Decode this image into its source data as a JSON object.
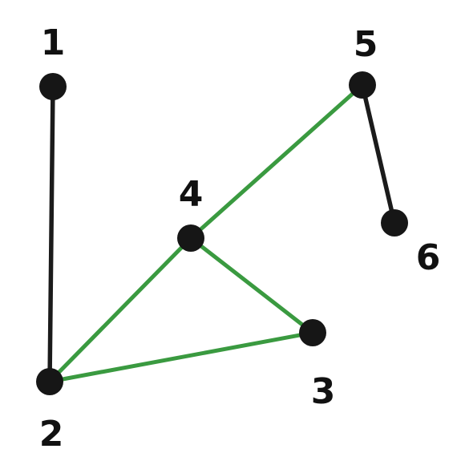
{
  "colors": {
    "node": "#161616",
    "default_edge": "#1b1b1b",
    "highlight_edge": "#3a9a40",
    "label": "#111111"
  },
  "nodes": [
    {
      "id": "1",
      "label": "1"
    },
    {
      "id": "2",
      "label": "2"
    },
    {
      "id": "3",
      "label": "3"
    },
    {
      "id": "4",
      "label": "4"
    },
    {
      "id": "5",
      "label": "5"
    },
    {
      "id": "6",
      "label": "6"
    }
  ],
  "edges": [
    {
      "from": "1",
      "to": "2",
      "highlighted": false
    },
    {
      "from": "5",
      "to": "6",
      "highlighted": false
    },
    {
      "from": "2",
      "to": "4",
      "highlighted": true
    },
    {
      "from": "4",
      "to": "5",
      "highlighted": true
    },
    {
      "from": "4",
      "to": "3",
      "highlighted": true
    },
    {
      "from": "2",
      "to": "3",
      "highlighted": true
    }
  ]
}
